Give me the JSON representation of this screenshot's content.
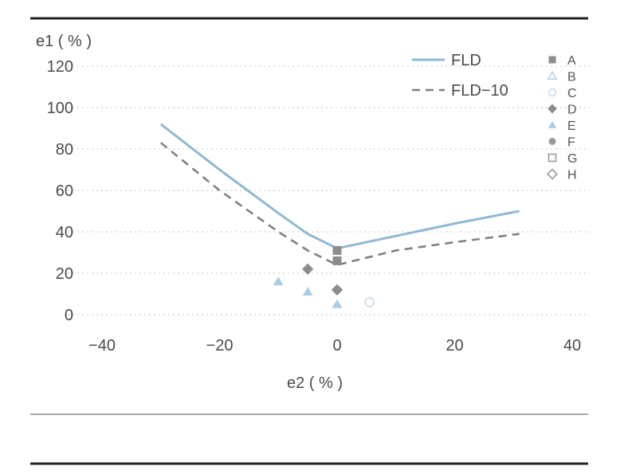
{
  "chart_data": {
    "type": "line",
    "title": "",
    "ylabel": "e1 ( % )",
    "xlabel": "e2 ( % )",
    "xlim": [
      -40,
      40
    ],
    "ylim": [
      0,
      120
    ],
    "x_ticks": [
      "−40",
      "−20",
      "0",
      "20",
      "40"
    ],
    "y_ticks": [
      "0",
      "20",
      "40",
      "60",
      "80",
      "100",
      "120"
    ],
    "grid": "horizontal dotted",
    "legend_position": "top-right",
    "series": [
      {
        "name": "FLD",
        "style": "solid",
        "color": "#8fb8d4",
        "x": [
          -30,
          -20,
          -10,
          -5,
          0,
          10,
          20,
          31
        ],
        "y": [
          92,
          70,
          49,
          39,
          32,
          38,
          44,
          50
        ]
      },
      {
        "name": "FLD−10",
        "style": "dashed",
        "color": "#808080",
        "x": [
          -30,
          -20,
          -10,
          -5,
          0,
          10,
          20,
          31
        ],
        "y": [
          83,
          60,
          40,
          31,
          24,
          31,
          35,
          39
        ]
      }
    ],
    "points": [
      {
        "label": "A",
        "shape": "square-filled",
        "color": "#8c8c8c",
        "x": [
          0,
          0
        ],
        "y": [
          31,
          26
        ]
      },
      {
        "label": "B",
        "shape": "triangle-open",
        "color": "#b5d2e6",
        "x": [],
        "y": []
      },
      {
        "label": "C",
        "shape": "circle-open",
        "color": "#c8dcea",
        "x": [
          5.5
        ],
        "y": [
          6
        ]
      },
      {
        "label": "D",
        "shape": "diamond-filled",
        "color": "#8c8c8c",
        "x": [
          -5,
          0
        ],
        "y": [
          22,
          12
        ]
      },
      {
        "label": "E",
        "shape": "triangle-filled",
        "color": "#a9cbe3",
        "x": [
          -10,
          -5,
          0
        ],
        "y": [
          16,
          11,
          5
        ]
      },
      {
        "label": "F",
        "shape": "circle-filled",
        "color": "#9a9a9a",
        "x": [],
        "y": []
      },
      {
        "label": "G",
        "shape": "square-open",
        "color": "#9a9a9a",
        "x": [],
        "y": []
      },
      {
        "label": "H",
        "shape": "diamond-open",
        "color": "#9a9a9a",
        "x": [],
        "y": []
      }
    ]
  }
}
